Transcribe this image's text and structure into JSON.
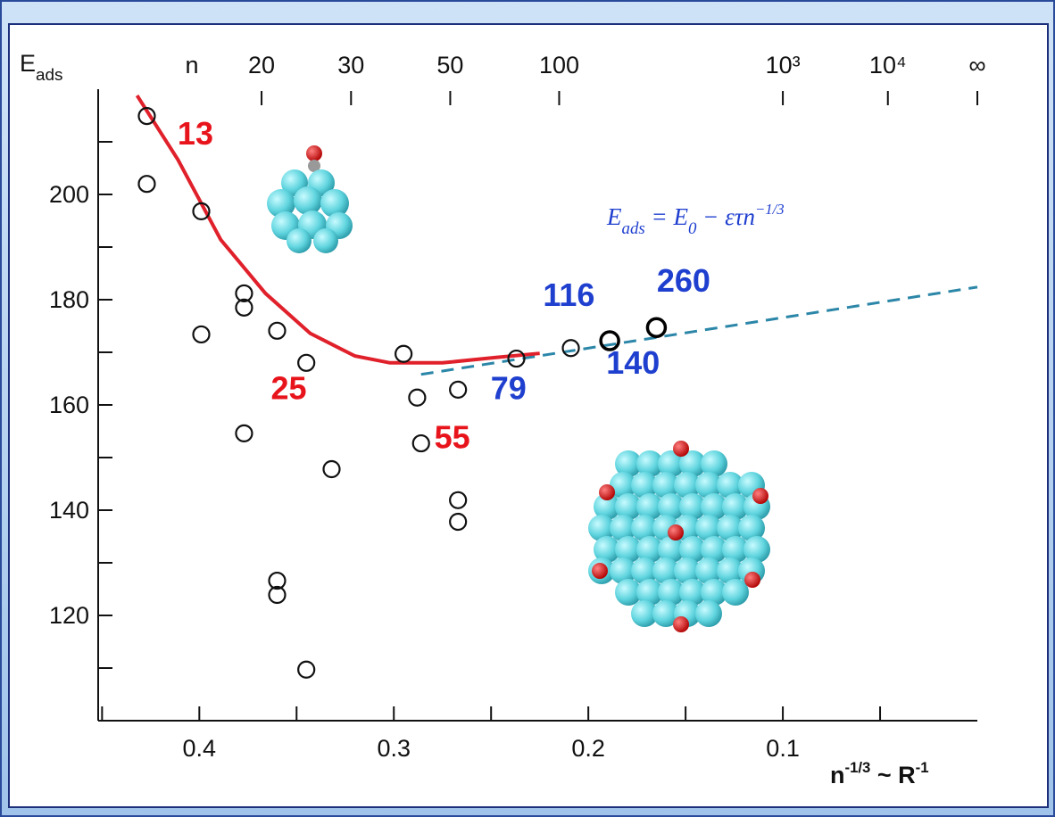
{
  "chart_data": {
    "type": "scatter",
    "y_label": [
      {
        "text": "E"
      },
      {
        "text": "ads",
        "shift": "sub"
      }
    ],
    "x_label": [
      {
        "text": "n"
      },
      {
        "text": "-1/3",
        "shift": "sup"
      },
      {
        "text": " ~ R"
      },
      {
        "text": "-1",
        "shift": "sup"
      }
    ],
    "x2_label": "n",
    "xlim": [
      0.452,
      0
    ],
    "ylim": [
      100,
      220
    ],
    "xticks": [
      0.4,
      0.3,
      0.2,
      0.1
    ],
    "xminor": [
      0.45,
      0.35,
      0.25,
      0.15,
      0.05
    ],
    "yticks": [
      120,
      140,
      160,
      180,
      200
    ],
    "yminor": [
      110,
      130,
      150,
      170,
      190,
      210
    ],
    "x2ticks": [
      {
        "value": 0.368,
        "label": "20"
      },
      {
        "value": 0.322,
        "label": "30"
      },
      {
        "value": 0.271,
        "label": "50"
      },
      {
        "value": 0.215,
        "label": "100"
      },
      {
        "value": 0.1,
        "label": "10³"
      },
      {
        "value": 0.046,
        "label": "10⁴"
      },
      {
        "value": 0,
        "label": "∞"
      }
    ],
    "series": [
      {
        "color": "#111111",
        "x": [
          0.427,
          0.427,
          0.399,
          0.399,
          0.377,
          0.377,
          0.377,
          0.36,
          0.36,
          0.36,
          0.345,
          0.345,
          0.332,
          0.295,
          0.288,
          0.286,
          0.267,
          0.267,
          0.267,
          0.237,
          0.209
        ],
        "y": [
          214.9,
          202.0,
          196.8,
          173.4,
          181.2,
          178.5,
          154.6,
          174.1,
          126.6,
          123.9,
          168.0,
          109.7,
          147.8,
          169.7,
          161.4,
          152.7,
          162.9,
          141.9,
          137.8,
          168.8,
          170.8
        ]
      },
      {
        "color": "#000000",
        "bold": true,
        "x": [
          0.189,
          0.165
        ],
        "y": [
          172.2,
          174.7
        ]
      }
    ],
    "fit": {
      "color": "#e0202a",
      "x": [
        0.432,
        0.411,
        0.389,
        0.366,
        0.343,
        0.32,
        0.302,
        0.275,
        0.248,
        0.225
      ],
      "y": [
        218.8,
        206.6,
        191.4,
        181.2,
        173.6,
        169.3,
        168.0,
        168.0,
        169.0,
        169.8
      ]
    },
    "trend": {
      "color": "#2b86a8",
      "x": [
        0.286,
        0
      ],
      "y": [
        165.8,
        182.4
      ]
    },
    "annotations": [
      {
        "text": "13",
        "color": "#e8141c",
        "x": 0.402,
        "y": 209.5
      },
      {
        "text": "25",
        "color": "#e8141c",
        "x": 0.354,
        "y": 161.1
      },
      {
        "text": "55",
        "color": "#e8141c",
        "x": 0.27,
        "y": 151.8
      },
      {
        "text": "79",
        "color": "#1f3fcf",
        "x": 0.241,
        "y": 161.1
      },
      {
        "text": "116",
        "color": "#1f3fcf",
        "x": 0.21,
        "y": 178.8
      },
      {
        "text": "140",
        "color": "#1f3fcf",
        "x": 0.177,
        "y": 165.9
      },
      {
        "text": "260",
        "color": "#1f3fcf",
        "x": 0.151,
        "y": 181.5
      }
    ],
    "formula": {
      "color": "#1f3fcf",
      "parts": [
        {
          "text": "E"
        },
        {
          "text": "ads",
          "shift": "sub"
        },
        {
          "text": " = E"
        },
        {
          "text": "0",
          "shift": "sub"
        },
        {
          "text": " − ετn"
        },
        {
          "text": "−1/3",
          "shift": "sup"
        }
      ]
    }
  }
}
